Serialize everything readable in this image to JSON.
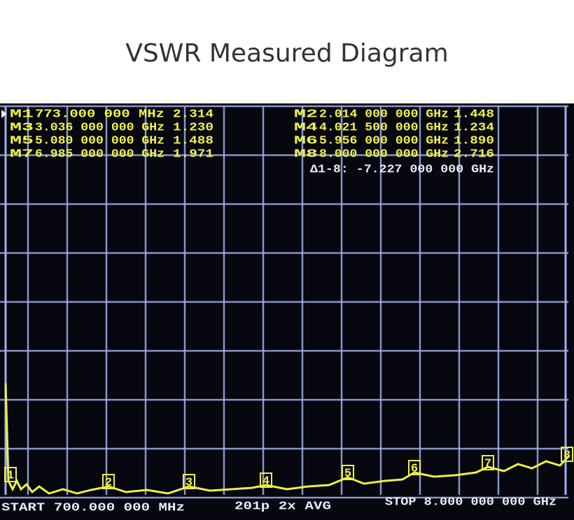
{
  "title": "VSWR Measured Diagram",
  "markers": [
    {
      "label": "M1",
      "frequency": "773.000 000 MHz",
      "vswr": "2.314",
      "trace_label": "1"
    },
    {
      "label": "M2",
      "frequency": "2.014 000 000 GHz",
      "vswr": "1.448",
      "trace_label": "2"
    },
    {
      "label": "M3",
      "frequency": "3.036 000 000 GHz",
      "vswr": "1.230",
      "trace_label": "3"
    },
    {
      "label": "M4",
      "frequency": "4.021 500 000 GHz",
      "vswr": "1.234",
      "trace_label": "4"
    },
    {
      "label": "M5",
      "frequency": "5.080 000 000 GHz",
      "vswr": "1.488",
      "trace_label": "5"
    },
    {
      "label": "M6",
      "frequency": "5.956 000 000 GHz",
      "vswr": "1.890",
      "trace_label": "6"
    },
    {
      "label": "M7",
      "frequency": "6.985 000 000 GHz",
      "vswr": "1.971",
      "trace_label": "7"
    },
    {
      "label": "M8",
      "frequency": "8.000 000 000 GHz",
      "vswr": "2.716",
      "trace_label": "8"
    }
  ],
  "delta": "Δ1-8: -7.227 000 000 GHz",
  "footer": {
    "start": "START 700.000 000 MHz",
    "points": "201p 2x AVG",
    "stop": "STOP 8.000 000 000 GHz"
  }
}
